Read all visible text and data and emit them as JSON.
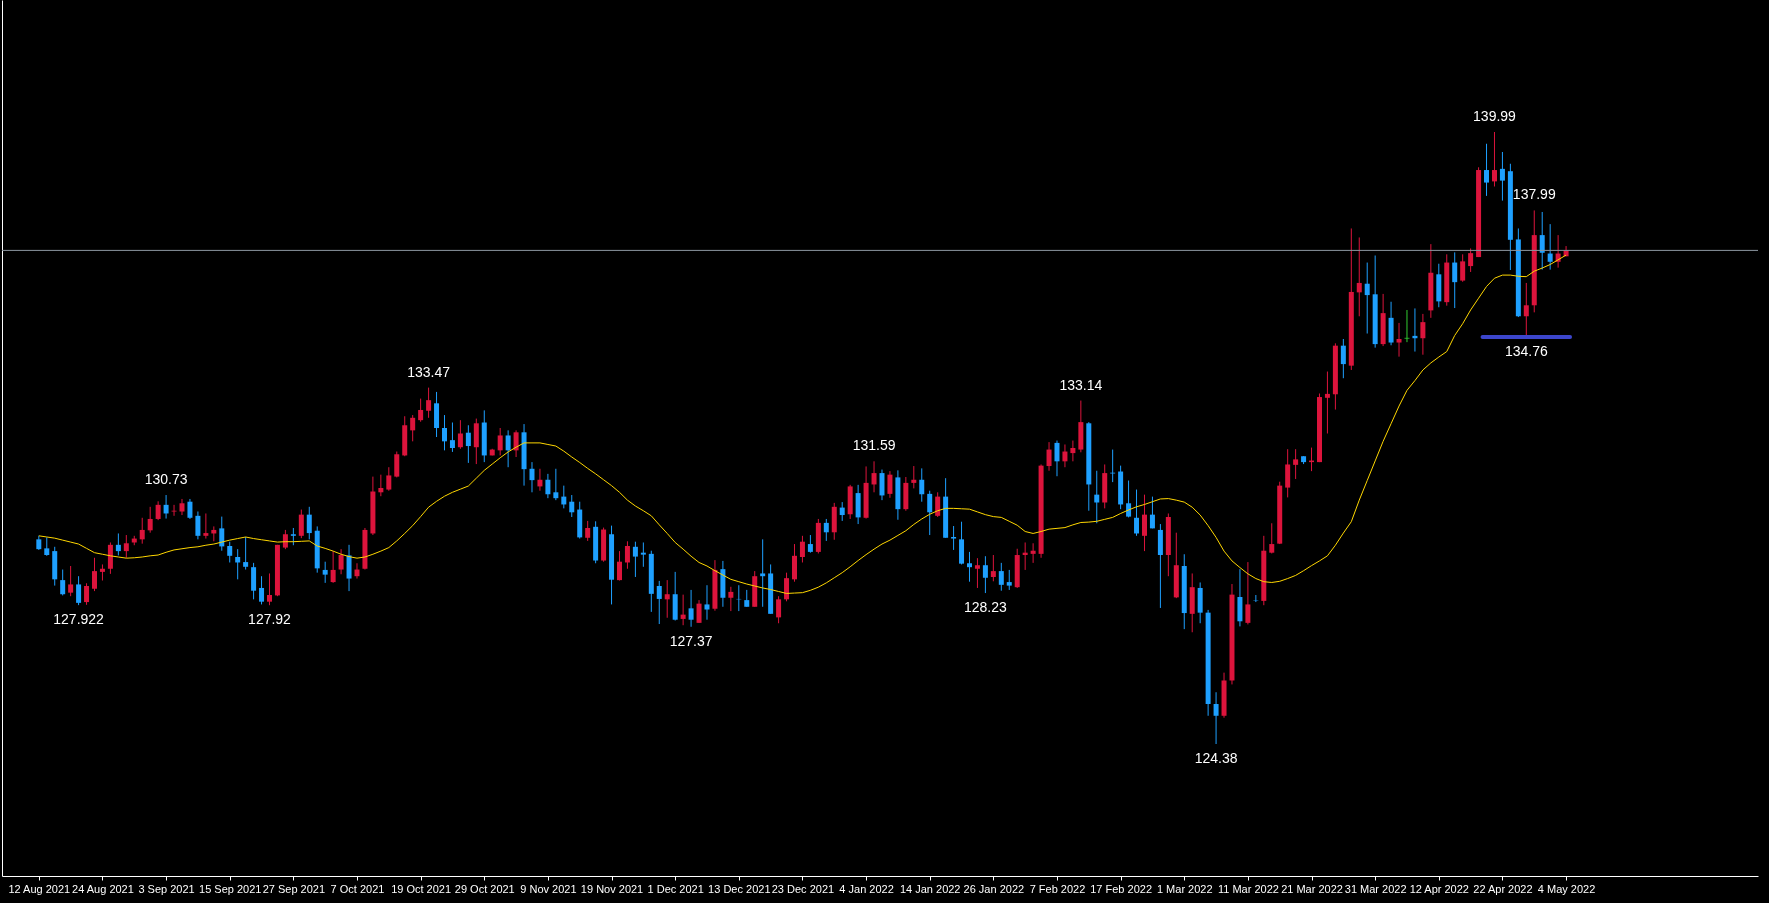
{
  "chart_data": {
    "type": "candlestick",
    "categories": [
      "12 Aug 2021",
      null,
      null,
      null,
      null,
      null,
      null,
      null,
      "24 Aug 2021",
      null,
      null,
      null,
      null,
      null,
      null,
      null,
      "3 Sep 2021",
      null,
      null,
      null,
      null,
      null,
      null,
      null,
      "15 Sep 2021",
      null,
      null,
      null,
      null,
      null,
      null,
      null,
      "27 Sep 2021",
      null,
      null,
      null,
      null,
      null,
      null,
      null,
      "7 Oct 2021",
      null,
      null,
      null,
      null,
      null,
      null,
      null,
      "19 Oct 2021",
      null,
      null,
      null,
      null,
      null,
      null,
      null,
      "29 Oct 2021",
      null,
      null,
      null,
      null,
      null,
      null,
      null,
      "9 Nov 2021",
      null,
      null,
      null,
      null,
      null,
      null,
      null,
      "19 Nov 2021",
      null,
      null,
      null,
      null,
      null,
      null,
      null,
      "1 Dec 2021",
      null,
      null,
      null,
      null,
      null,
      null,
      null,
      "13 Dec 2021",
      null,
      null,
      null,
      null,
      null,
      null,
      null,
      "23 Dec 2021",
      null,
      null,
      null,
      null,
      null,
      null,
      null,
      "4 Jan 2022",
      null,
      null,
      null,
      null,
      null,
      null,
      null,
      "14 Jan 2022",
      null,
      null,
      null,
      null,
      null,
      null,
      null,
      "26 Jan 2022",
      null,
      null,
      null,
      null,
      null,
      null,
      null,
      "7 Feb 2022",
      null,
      null,
      null,
      null,
      null,
      null,
      null,
      "17 Feb 2022",
      null,
      null,
      null,
      null,
      null,
      null,
      null,
      "1 Mar 2022",
      null,
      null,
      null,
      null,
      null,
      null,
      null,
      "11 Mar 2022",
      null,
      null,
      null,
      null,
      null,
      null,
      null,
      "21 Mar 2022",
      null,
      null,
      null,
      null,
      null,
      null,
      null,
      "31 Mar 2022",
      null,
      null,
      null,
      null,
      null,
      null,
      null,
      "12 Apr 2022",
      null,
      null,
      null,
      null,
      null,
      null,
      null,
      "22 Apr 2022",
      null,
      null,
      null,
      null,
      null,
      null,
      null,
      "4 May 2022"
    ],
    "ohlc": [
      [
        129.6,
        129.69,
        129.33,
        129.35
      ],
      [
        129.37,
        129.65,
        129.18,
        129.2
      ],
      [
        129.3,
        129.41,
        128.42,
        128.58
      ],
      [
        128.56,
        128.83,
        128.17,
        128.2
      ],
      [
        128.24,
        128.92,
        128.15,
        128.45
      ],
      [
        128.45,
        128.66,
        127.922,
        127.98
      ],
      [
        128.0,
        128.48,
        127.93,
        128.41
      ],
      [
        128.34,
        129.13,
        128.28,
        128.79
      ],
      [
        128.77,
        128.96,
        128.55,
        128.85
      ],
      [
        128.85,
        129.52,
        128.72,
        129.46
      ],
      [
        129.46,
        129.75,
        129.19,
        129.3
      ],
      [
        129.3,
        129.71,
        129.13,
        129.5
      ],
      [
        129.52,
        129.69,
        129.45,
        129.62
      ],
      [
        129.6,
        130.15,
        129.49,
        129.84
      ],
      [
        129.83,
        130.43,
        129.77,
        130.12
      ],
      [
        130.12,
        130.57,
        130.09,
        130.48
      ],
      [
        130.48,
        130.73,
        130.13,
        130.26
      ],
      [
        130.31,
        130.48,
        130.2,
        130.33
      ],
      [
        130.31,
        130.63,
        130.22,
        130.52
      ],
      [
        130.56,
        130.63,
        130.12,
        130.15
      ],
      [
        130.2,
        130.31,
        129.6,
        129.69
      ],
      [
        129.69,
        130.26,
        129.62,
        129.76
      ],
      [
        129.75,
        129.93,
        129.55,
        129.84
      ],
      [
        129.88,
        130.18,
        129.31,
        129.42
      ],
      [
        129.43,
        129.54,
        129.01,
        129.18
      ],
      [
        129.15,
        129.35,
        128.58,
        129.01
      ],
      [
        129.02,
        129.66,
        128.83,
        128.9
      ],
      [
        128.89,
        129.0,
        128.07,
        128.29
      ],
      [
        128.36,
        128.66,
        127.94,
        128.01
      ],
      [
        128.01,
        128.73,
        127.92,
        128.18
      ],
      [
        128.17,
        129.46,
        128.15,
        129.46
      ],
      [
        129.39,
        129.84,
        129.35,
        129.73
      ],
      [
        129.73,
        129.89,
        129.45,
        129.69
      ],
      [
        129.69,
        130.36,
        129.63,
        130.23
      ],
      [
        130.23,
        130.43,
        129.6,
        129.76
      ],
      [
        129.82,
        129.93,
        128.75,
        128.86
      ],
      [
        128.82,
        129.03,
        128.49,
        128.7
      ],
      [
        128.51,
        129.3,
        128.49,
        128.82
      ],
      [
        128.83,
        129.35,
        128.71,
        129.2
      ],
      [
        129.19,
        129.46,
        128.28,
        128.6
      ],
      [
        128.66,
        128.99,
        128.6,
        128.83
      ],
      [
        128.85,
        129.89,
        128.83,
        129.84
      ],
      [
        129.75,
        131.2,
        129.71,
        130.82
      ],
      [
        130.8,
        131.25,
        130.7,
        130.91
      ],
      [
        130.87,
        131.44,
        130.84,
        131.23
      ],
      [
        131.2,
        131.84,
        131.18,
        131.77
      ],
      [
        131.74,
        132.74,
        131.72,
        132.51
      ],
      [
        132.38,
        132.77,
        132.1,
        132.7
      ],
      [
        132.64,
        133.19,
        132.6,
        132.9
      ],
      [
        132.88,
        133.47,
        132.7,
        133.15
      ],
      [
        133.07,
        133.36,
        132.21,
        132.44
      ],
      [
        132.44,
        132.77,
        131.87,
        132.1
      ],
      [
        132.13,
        132.58,
        131.83,
        131.93
      ],
      [
        131.95,
        132.64,
        131.91,
        132.3
      ],
      [
        132.32,
        132.51,
        131.55,
        131.98
      ],
      [
        131.95,
        132.68,
        131.52,
        132.56
      ],
      [
        132.58,
        132.89,
        131.57,
        131.74
      ],
      [
        131.74,
        131.91,
        131.74,
        131.89
      ],
      [
        131.87,
        132.44,
        131.74,
        132.25
      ],
      [
        132.25,
        132.38,
        131.44,
        131.87
      ],
      [
        131.87,
        132.38,
        131.7,
        132.33
      ],
      [
        132.33,
        132.54,
        130.97,
        131.39
      ],
      [
        131.4,
        131.57,
        130.8,
        131.11
      ],
      [
        130.95,
        131.4,
        130.84,
        131.12
      ],
      [
        131.12,
        131.27,
        130.65,
        130.75
      ],
      [
        130.8,
        131.4,
        130.6,
        130.65
      ],
      [
        130.69,
        130.97,
        130.39,
        130.49
      ],
      [
        130.56,
        130.73,
        130.17,
        130.29
      ],
      [
        130.36,
        130.56,
        129.62,
        129.65
      ],
      [
        129.64,
        130.07,
        129.56,
        129.89
      ],
      [
        129.92,
        130.06,
        128.99,
        129.06
      ],
      [
        129.06,
        129.9,
        129.03,
        129.85
      ],
      [
        129.73,
        129.95,
        127.94,
        128.57
      ],
      [
        128.56,
        129.3,
        128.55,
        129.03
      ],
      [
        129.01,
        129.55,
        128.85,
        129.43
      ],
      [
        129.41,
        129.54,
        128.64,
        129.16
      ],
      [
        129.26,
        129.52,
        128.9,
        129.21
      ],
      [
        129.23,
        129.31,
        127.75,
        128.21
      ],
      [
        128.41,
        128.54,
        127.44,
        128.08
      ],
      [
        128.07,
        128.56,
        127.6,
        128.2
      ],
      [
        128.2,
        128.77,
        127.53,
        127.55
      ],
      [
        127.57,
        128.19,
        127.41,
        127.68
      ],
      [
        127.84,
        128.31,
        127.37,
        127.55
      ],
      [
        127.47,
        128.05,
        127.47,
        127.96
      ],
      [
        127.94,
        128.43,
        127.55,
        127.81
      ],
      [
        127.83,
        129.07,
        127.78,
        128.82
      ],
      [
        128.84,
        129.05,
        127.88,
        128.11
      ],
      [
        128.11,
        128.39,
        127.77,
        128.26
      ],
      [
        128.08,
        128.43,
        127.77,
        128.07
      ],
      [
        128.05,
        128.31,
        127.88,
        127.88
      ],
      [
        127.88,
        128.79,
        127.88,
        128.66
      ],
      [
        128.73,
        129.6,
        127.88,
        128.66
      ],
      [
        128.73,
        128.96,
        127.7,
        127.7
      ],
      [
        127.61,
        128.15,
        127.46,
        128.07
      ],
      [
        128.07,
        128.75,
        128.02,
        128.61
      ],
      [
        128.58,
        129.48,
        128.52,
        129.18
      ],
      [
        129.15,
        129.69,
        129.01,
        129.54
      ],
      [
        129.48,
        129.71,
        129.26,
        129.28
      ],
      [
        129.28,
        130.12,
        129.24,
        130.02
      ],
      [
        130.02,
        130.12,
        129.56,
        129.78
      ],
      [
        129.78,
        130.53,
        129.59,
        130.43
      ],
      [
        130.41,
        130.55,
        130.07,
        130.22
      ],
      [
        130.24,
        130.99,
        130.12,
        130.95
      ],
      [
        130.78,
        130.99,
        129.99,
        130.16
      ],
      [
        130.15,
        131.46,
        130.13,
        131.04
      ],
      [
        131.0,
        131.59,
        130.8,
        131.29
      ],
      [
        131.29,
        131.38,
        130.6,
        130.72
      ],
      [
        130.76,
        131.34,
        130.66,
        131.25
      ],
      [
        131.18,
        131.36,
        130.1,
        130.37
      ],
      [
        130.37,
        131.19,
        130.33,
        131.04
      ],
      [
        131.04,
        131.47,
        130.9,
        131.12
      ],
      [
        131.12,
        131.41,
        130.56,
        130.75
      ],
      [
        130.76,
        130.84,
        129.71,
        130.29
      ],
      [
        130.2,
        130.8,
        130.17,
        130.69
      ],
      [
        130.69,
        131.16,
        129.64,
        129.64
      ],
      [
        129.66,
        129.94,
        129.33,
        129.62
      ],
      [
        129.6,
        130.05,
        128.96,
        128.98
      ],
      [
        128.99,
        129.28,
        128.52,
        128.89
      ],
      [
        128.85,
        129.12,
        128.36,
        128.94
      ],
      [
        128.94,
        129.17,
        128.23,
        128.62
      ],
      [
        128.64,
        129.2,
        128.53,
        128.79
      ],
      [
        128.79,
        129.0,
        128.29,
        128.44
      ],
      [
        128.51,
        128.82,
        128.31,
        128.42
      ],
      [
        128.38,
        129.36,
        128.36,
        129.2
      ],
      [
        129.2,
        129.52,
        128.82,
        129.26
      ],
      [
        129.23,
        129.5,
        129.0,
        129.31
      ],
      [
        129.23,
        131.51,
        129.13,
        131.48
      ],
      [
        131.47,
        132.08,
        131.35,
        131.89
      ],
      [
        132.06,
        132.12,
        131.21,
        131.59
      ],
      [
        131.59,
        132.02,
        131.44,
        131.84
      ],
      [
        131.8,
        132.12,
        131.59,
        131.93
      ],
      [
        131.89,
        133.14,
        131.82,
        132.59
      ],
      [
        132.56,
        132.59,
        130.33,
        131.0
      ],
      [
        130.74,
        131.35,
        130.01,
        130.54
      ],
      [
        130.54,
        131.51,
        130.39,
        131.29
      ],
      [
        131.3,
        131.89,
        131.06,
        131.28
      ],
      [
        131.33,
        131.48,
        130.37,
        130.49
      ],
      [
        130.52,
        131.1,
        130.16,
        130.18
      ],
      [
        130.15,
        130.87,
        129.69,
        129.75
      ],
      [
        129.69,
        130.74,
        129.3,
        130.23
      ],
      [
        130.23,
        130.69,
        129.88,
        129.88
      ],
      [
        129.84,
        129.99,
        127.85,
        129.2
      ],
      [
        129.2,
        130.26,
        128.66,
        130.17
      ],
      [
        128.12,
        129.77,
        128.1,
        128.94
      ],
      [
        128.92,
        129.22,
        127.31,
        127.72
      ],
      [
        127.7,
        128.73,
        127.23,
        128.38
      ],
      [
        128.36,
        128.5,
        127.46,
        127.73
      ],
      [
        127.73,
        127.8,
        125.1,
        125.4
      ],
      [
        125.4,
        125.7,
        124.38,
        125.1
      ],
      [
        125.1,
        126.2,
        125.05,
        126.0
      ],
      [
        126.0,
        128.46,
        125.9,
        128.19
      ],
      [
        128.13,
        128.84,
        127.38,
        127.51
      ],
      [
        127.47,
        129.02,
        127.43,
        127.94
      ],
      [
        128.04,
        128.18,
        128.0,
        128.03
      ],
      [
        128.03,
        129.69,
        127.92,
        129.31
      ],
      [
        129.26,
        130.01,
        129.24,
        129.48
      ],
      [
        129.49,
        131.07,
        129.48,
        130.97
      ],
      [
        130.92,
        131.9,
        130.67,
        131.51
      ],
      [
        131.5,
        131.9,
        131.14,
        131.64
      ],
      [
        131.72,
        131.72,
        131.52,
        131.57
      ],
      [
        131.57,
        131.94,
        131.34,
        131.61
      ],
      [
        131.57,
        133.32,
        131.57,
        133.23
      ],
      [
        133.21,
        133.88,
        132.3,
        133.31
      ],
      [
        133.3,
        134.6,
        132.91,
        134.54
      ],
      [
        134.54,
        134.71,
        133.71,
        134.07
      ],
      [
        134.03,
        137.53,
        133.92,
        135.91
      ],
      [
        135.9,
        137.3,
        135.29,
        136.14
      ],
      [
        136.12,
        136.66,
        134.85,
        135.83
      ],
      [
        135.85,
        136.84,
        134.49,
        134.58
      ],
      [
        134.58,
        135.86,
        134.53,
        135.37
      ],
      [
        135.25,
        135.66,
        134.55,
        134.62
      ],
      [
        134.62,
        135.12,
        134.26,
        134.71
      ],
      [
        134.72,
        135.45,
        134.63,
        134.74
      ],
      [
        134.79,
        135.49,
        134.39,
        134.73
      ],
      [
        134.73,
        135.35,
        134.31,
        135.14
      ],
      [
        135.44,
        137.13,
        135.25,
        136.4
      ],
      [
        136.36,
        136.63,
        135.52,
        135.67
      ],
      [
        135.65,
        136.87,
        135.56,
        136.66
      ],
      [
        136.66,
        136.92,
        135.5,
        136.16
      ],
      [
        136.2,
        136.87,
        136.17,
        136.69
      ],
      [
        136.57,
        137.02,
        136.42,
        136.9
      ],
      [
        136.8,
        139.09,
        136.8,
        139.02
      ],
      [
        139.02,
        139.69,
        138.36,
        138.7
      ],
      [
        138.73,
        139.99,
        138.6,
        139.02
      ],
      [
        139.05,
        139.48,
        138.24,
        138.75
      ],
      [
        138.99,
        139.18,
        136.47,
        137.24
      ],
      [
        137.25,
        137.53,
        135.27,
        135.29
      ],
      [
        135.29,
        136.14,
        134.76,
        135.57
      ],
      [
        135.57,
        137.99,
        135.39,
        137.36
      ],
      [
        137.36,
        137.95,
        136.48,
        136.91
      ],
      [
        136.89,
        137.64,
        136.48,
        136.68
      ],
      [
        136.68,
        137.36,
        136.53,
        136.89
      ],
      [
        136.82,
        137.08,
        136.82,
        136.97
      ]
    ],
    "colors": [
      "#1ea0ff",
      "#1ea0ff",
      "#1ea0ff",
      "#1ea0ff",
      "#dc143c",
      "#1ea0ff",
      "#dc143c",
      "#dc143c",
      "#dc143c",
      "#dc143c",
      "#1ea0ff",
      "#dc143c",
      "#dc143c",
      "#dc143c",
      "#dc143c",
      "#dc143c",
      "#1ea0ff",
      "#dc143c",
      "#dc143c",
      "#1ea0ff",
      "#1ea0ff",
      "#dc143c",
      "#dc143c",
      "#1ea0ff",
      "#1ea0ff",
      "#1ea0ff",
      "#1ea0ff",
      "#1ea0ff",
      "#1ea0ff",
      "#dc143c",
      "#dc143c",
      "#dc143c",
      "#1ea0ff",
      "#dc143c",
      "#1ea0ff",
      "#1ea0ff",
      "#1ea0ff",
      "#dc143c",
      "#dc143c",
      "#1ea0ff",
      "#dc143c",
      "#dc143c",
      "#dc143c",
      "#dc143c",
      "#dc143c",
      "#dc143c",
      "#dc143c",
      "#dc143c",
      "#dc143c",
      "#dc143c",
      "#1ea0ff",
      "#1ea0ff",
      "#1ea0ff",
      "#dc143c",
      "#1ea0ff",
      "#dc143c",
      "#1ea0ff",
      "#dc143c",
      "#dc143c",
      "#1ea0ff",
      "#dc143c",
      "#1ea0ff",
      "#1ea0ff",
      "#dc143c",
      "#1ea0ff",
      "#1ea0ff",
      "#1ea0ff",
      "#1ea0ff",
      "#1ea0ff",
      "#dc143c",
      "#1ea0ff",
      "#dc143c",
      "#1ea0ff",
      "#dc143c",
      "#dc143c",
      "#1ea0ff",
      "#1ea0ff",
      "#1ea0ff",
      "#1ea0ff",
      "#dc143c",
      "#1ea0ff",
      "#dc143c",
      "#1ea0ff",
      "#dc143c",
      "#1ea0ff",
      "#dc143c",
      "#1ea0ff",
      "#dc143c",
      "#1ea0ff",
      "#1ea0ff",
      "#dc143c",
      "#1ea0ff",
      "#1ea0ff",
      "#dc143c",
      "#dc143c",
      "#dc143c",
      "#dc143c",
      "#1ea0ff",
      "#dc143c",
      "#1ea0ff",
      "#dc143c",
      "#1ea0ff",
      "#dc143c",
      "#1ea0ff",
      "#dc143c",
      "#dc143c",
      "#1ea0ff",
      "#dc143c",
      "#1ea0ff",
      "#dc143c",
      "#dc143c",
      "#1ea0ff",
      "#1ea0ff",
      "#dc143c",
      "#1ea0ff",
      "#1ea0ff",
      "#1ea0ff",
      "#1ea0ff",
      "#dc143c",
      "#1ea0ff",
      "#dc143c",
      "#1ea0ff",
      "#1ea0ff",
      "#dc143c",
      "#dc143c",
      "#dc143c",
      "#dc143c",
      "#dc143c",
      "#1ea0ff",
      "#dc143c",
      "#dc143c",
      "#dc143c",
      "#1ea0ff",
      "#1ea0ff",
      "#dc143c",
      "#1ea0ff",
      "#1ea0ff",
      "#1ea0ff",
      "#1ea0ff",
      "#dc143c",
      "#1ea0ff",
      "#1ea0ff",
      "#dc143c",
      "#dc143c",
      "#1ea0ff",
      "#dc143c",
      "#1ea0ff",
      "#1ea0ff",
      "#1ea0ff",
      "#dc143c",
      "#dc143c",
      "#1ea0ff",
      "#dc143c",
      "#1ea0ff",
      "#dc143c",
      "#dc143c",
      "#dc143c",
      "#dc143c",
      "#dc143c",
      "#1ea0ff",
      "#dc143c",
      "#dc143c",
      "#dc143c",
      "#dc143c",
      "#1ea0ff",
      "#dc143c",
      "#dc143c",
      "#1ea0ff",
      "#1ea0ff",
      "#dc143c",
      "#1ea0ff",
      "#dc143c",
      "#32cd32",
      "#1ea0ff",
      "#dc143c",
      "#dc143c",
      "#1ea0ff",
      "#dc143c",
      "#1ea0ff",
      "#dc143c",
      "#dc143c",
      "#dc143c",
      "#1ea0ff",
      "#dc143c",
      "#1ea0ff",
      "#1ea0ff",
      "#1ea0ff",
      "#dc143c",
      "#dc143c",
      "#1ea0ff",
      "#1ea0ff",
      "#dc143c",
      "#dc143c"
    ],
    "series": [
      {
        "type": "line",
        "color": "#ffd700",
        "values": [
          129.69,
          129.66,
          129.63,
          129.58,
          129.53,
          129.48,
          129.37,
          129.26,
          129.22,
          129.18,
          129.15,
          129.12,
          129.13,
          129.15,
          129.18,
          129.2,
          129.27,
          129.33,
          129.36,
          129.39,
          129.41,
          129.45,
          129.48,
          129.53,
          129.58,
          129.62,
          129.66,
          129.62,
          129.59,
          129.56,
          129.53,
          129.54,
          129.54,
          129.55,
          129.56,
          129.43,
          129.37,
          129.3,
          129.22,
          129.16,
          129.12,
          129.15,
          129.22,
          129.3,
          129.39,
          129.56,
          129.75,
          129.95,
          130.18,
          130.42,
          130.57,
          130.7,
          130.8,
          130.88,
          130.96,
          131.16,
          131.36,
          131.52,
          131.68,
          131.83,
          131.95,
          132.06,
          132.06,
          132.06,
          132.02,
          131.98,
          131.85,
          131.7,
          131.56,
          131.41,
          131.27,
          131.12,
          130.97,
          130.8,
          130.6,
          130.45,
          130.33,
          130.2,
          129.97,
          129.75,
          129.52,
          129.35,
          129.17,
          129.01,
          128.92,
          128.8,
          128.69,
          128.58,
          128.52,
          128.46,
          128.41,
          128.36,
          128.32,
          128.27,
          128.22,
          128.23,
          128.24,
          128.3,
          128.38,
          128.49,
          128.62,
          128.75,
          128.9,
          129.06,
          129.21,
          129.35,
          129.48,
          129.58,
          129.7,
          129.82,
          129.98,
          130.12,
          130.24,
          130.33,
          130.39,
          130.39,
          130.38,
          130.37,
          130.3,
          130.23,
          130.18,
          130.16,
          130.06,
          129.96,
          129.8,
          129.75,
          129.8,
          129.86,
          129.88,
          129.9,
          129.97,
          130.03,
          130.04,
          130.06,
          130.11,
          130.16,
          130.26,
          130.35,
          130.43,
          130.49,
          130.56,
          130.63,
          130.64,
          130.6,
          130.55,
          130.42,
          130.22,
          129.95,
          129.65,
          129.3,
          129.05,
          128.88,
          128.72,
          128.6,
          128.52,
          128.5,
          128.53,
          128.6,
          128.68,
          128.8,
          128.93,
          129.05,
          129.18,
          129.45,
          129.76,
          130.05,
          130.6,
          131.1,
          131.6,
          132.1,
          132.55,
          133.0,
          133.4,
          133.65,
          133.92,
          134.1,
          134.25,
          134.39,
          134.8,
          135.1,
          135.45,
          135.75,
          136.05,
          136.26,
          136.34,
          136.34,
          136.31,
          136.3,
          136.44,
          136.52,
          136.61,
          136.73,
          136.85
        ]
      }
    ],
    "ref_lines": [
      {
        "axis": "y",
        "value": 136.97,
        "color": "#8c96a0"
      },
      {
        "axis": "y",
        "value": 134.76,
        "label": "134.76",
        "color": "#3c46cc"
      }
    ],
    "annotations": [
      {
        "text": "127.922",
        "y": 127.922
      },
      {
        "text": "130.73",
        "y": 130.73
      },
      {
        "text": "127.92",
        "y": 127.92
      },
      {
        "text": "133.47",
        "y": 133.47
      },
      {
        "text": "127.37",
        "y": 127.37
      },
      {
        "text": "131.59",
        "y": 131.59
      },
      {
        "text": "128.23",
        "y": 128.23
      },
      {
        "text": "133.14",
        "y": 133.14
      },
      {
        "text": "124.38",
        "y": 124.38
      },
      {
        "text": "139.99",
        "y": 139.99
      },
      {
        "text": "137.99",
        "y": 137.99
      }
    ]
  }
}
